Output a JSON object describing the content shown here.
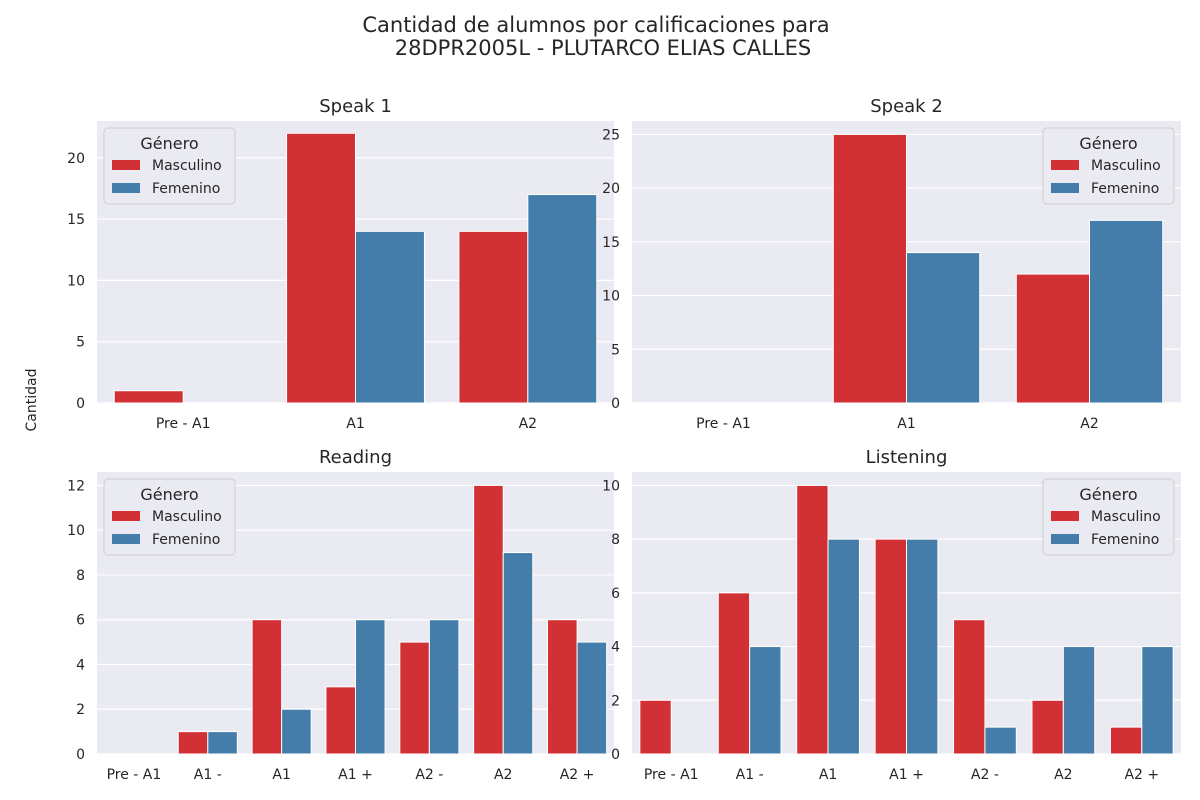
{
  "figure": {
    "title_line1": "Cantidad de alumnos por calificaciones para",
    "title_line2": "28DPR2005L - PLUTARCO ELIAS CALLES",
    "ylabel": "Cantidad"
  },
  "legend": {
    "title": "Género",
    "entries": [
      "Masculino",
      "Femenino"
    ]
  },
  "colors": {
    "Masculino": "#d13034",
    "Femenino": "#447caa",
    "panel_bg": "#eaeaf2",
    "grid": "#ffffff"
  },
  "chart_data": [
    {
      "type": "bar",
      "title": "Speak 1",
      "categories": [
        "Pre - A1",
        "A1",
        "A2"
      ],
      "series": [
        {
          "name": "Masculino",
          "values": [
            1,
            22,
            14
          ]
        },
        {
          "name": "Femenino",
          "values": [
            0,
            14,
            17
          ]
        }
      ],
      "ylim": [
        0,
        23
      ],
      "yticks": [
        0,
        5,
        10,
        15,
        20
      ],
      "legend_position": "top-left",
      "grid": true
    },
    {
      "type": "bar",
      "title": "Speak 2",
      "categories": [
        "Pre - A1",
        "A1",
        "A2"
      ],
      "series": [
        {
          "name": "Masculino",
          "values": [
            0,
            25,
            12
          ]
        },
        {
          "name": "Femenino",
          "values": [
            0,
            14,
            17
          ]
        }
      ],
      "ylim": [
        0,
        26.25
      ],
      "yticks": [
        0,
        5,
        10,
        15,
        20,
        25
      ],
      "legend_position": "top-right",
      "grid": true
    },
    {
      "type": "bar",
      "title": "Reading",
      "categories": [
        "Pre - A1",
        "A1 -",
        "A1",
        "A1 +",
        "A2 -",
        "A2",
        "A2 +"
      ],
      "series": [
        {
          "name": "Masculino",
          "values": [
            0,
            1,
            6,
            3,
            5,
            12,
            6
          ]
        },
        {
          "name": "Femenino",
          "values": [
            0,
            1,
            2,
            6,
            6,
            9,
            5
          ]
        }
      ],
      "ylim": [
        0,
        12.6
      ],
      "yticks": [
        0,
        2,
        4,
        6,
        8,
        10,
        12
      ],
      "legend_position": "top-left",
      "grid": true
    },
    {
      "type": "bar",
      "title": "Listening",
      "categories": [
        "Pre - A1",
        "A1 -",
        "A1",
        "A1 +",
        "A2 -",
        "A2",
        "A2 +"
      ],
      "series": [
        {
          "name": "Masculino",
          "values": [
            2,
            6,
            10,
            8,
            5,
            2,
            1
          ]
        },
        {
          "name": "Femenino",
          "values": [
            0,
            4,
            8,
            8,
            1,
            4,
            4
          ]
        }
      ],
      "ylim": [
        0,
        10.5
      ],
      "yticks": [
        0,
        2,
        4,
        6,
        8,
        10
      ],
      "legend_position": "top-right",
      "grid": true
    }
  ]
}
